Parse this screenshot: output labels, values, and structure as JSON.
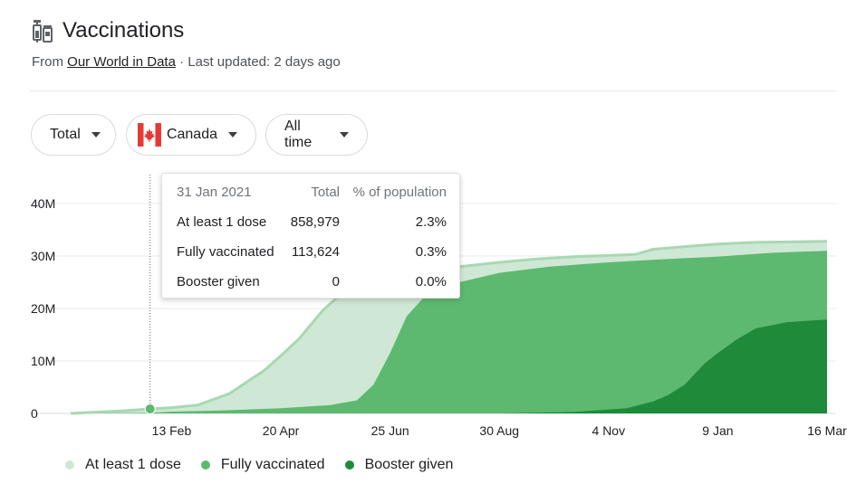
{
  "header": {
    "title": "Vaccinations",
    "icon": "syringe-vial-icon",
    "from_label": "From",
    "source_link": "Our World in Data",
    "separator": "·",
    "updated": "Last updated: 2 days ago"
  },
  "filters": {
    "metric": "Total",
    "country": "Canada",
    "country_flag": "canada-flag-icon",
    "range": "All time"
  },
  "tooltip": {
    "date": "31 Jan 2021",
    "col_total": "Total",
    "col_pct": "% of population",
    "rows": [
      {
        "label": "At least 1 dose",
        "total": "858,979",
        "pct": "2.3%"
      },
      {
        "label": "Fully vaccinated",
        "total": "113,624",
        "pct": "0.3%"
      },
      {
        "label": "Booster given",
        "total": "0",
        "pct": "0.0%"
      }
    ]
  },
  "colors": {
    "at_least_one": "#cfe8d5",
    "at_least_one_line": "#a8d8b2",
    "fully": "#5db96f",
    "booster": "#1e8a3a",
    "grid": "#ebebeb",
    "axis_text": "#202124"
  },
  "chart_data": {
    "type": "area",
    "title": "",
    "xlabel": "",
    "ylabel": "",
    "x_ticks": [
      "13 Feb",
      "20 Apr",
      "25 Jun",
      "30 Aug",
      "4 Nov",
      "9 Jan",
      "16 Mar"
    ],
    "y_ticks": [
      "0",
      "10M",
      "20M",
      "30M",
      "40M"
    ],
    "ylim": [
      0,
      40
    ],
    "y_unit": "M",
    "grid": true,
    "legend_position": "bottom",
    "x_domain": [
      "2020-12-14",
      "2022-03-16"
    ],
    "highlight": {
      "date": "2021-01-31",
      "series": "At least 1 dose",
      "value": 0.858979
    },
    "series": [
      {
        "name": "At least 1 dose",
        "points": [
          [
            "2020-12-14",
            0
          ],
          [
            "2021-01-15",
            0.5
          ],
          [
            "2021-01-31",
            0.86
          ],
          [
            "2021-02-13",
            1.1
          ],
          [
            "2021-03-01",
            1.6
          ],
          [
            "2021-03-20",
            3.8
          ],
          [
            "2021-04-10",
            8.2
          ],
          [
            "2021-04-20",
            11.0
          ],
          [
            "2021-05-01",
            14.2
          ],
          [
            "2021-05-15",
            19.5
          ],
          [
            "2021-05-29",
            23.6
          ],
          [
            "2021-06-10",
            25.8
          ],
          [
            "2021-06-25",
            26.8
          ],
          [
            "2021-07-15",
            27.4
          ],
          [
            "2021-08-10",
            28.1
          ],
          [
            "2021-08-30",
            28.8
          ],
          [
            "2021-09-20",
            29.4
          ],
          [
            "2021-10-15",
            29.9
          ],
          [
            "2021-11-04",
            30.1
          ],
          [
            "2021-11-20",
            30.3
          ],
          [
            "2021-12-01",
            31.3
          ],
          [
            "2021-12-20",
            31.8
          ],
          [
            "2022-01-09",
            32.3
          ],
          [
            "2022-02-01",
            32.6
          ],
          [
            "2022-03-16",
            32.8
          ]
        ]
      },
      {
        "name": "Fully vaccinated",
        "points": [
          [
            "2020-12-14",
            0
          ],
          [
            "2021-01-31",
            0.11
          ],
          [
            "2021-02-13",
            0.35
          ],
          [
            "2021-03-15",
            0.55
          ],
          [
            "2021-04-20",
            1.0
          ],
          [
            "2021-05-20",
            1.6
          ],
          [
            "2021-06-05",
            2.5
          ],
          [
            "2021-06-15",
            5.5
          ],
          [
            "2021-06-25",
            11.5
          ],
          [
            "2021-07-05",
            18.5
          ],
          [
            "2021-07-15",
            22.0
          ],
          [
            "2021-07-30",
            24.5
          ],
          [
            "2021-08-30",
            26.8
          ],
          [
            "2021-09-30",
            28.0
          ],
          [
            "2021-11-04",
            28.8
          ],
          [
            "2021-12-01",
            29.3
          ],
          [
            "2022-01-09",
            29.9
          ],
          [
            "2022-02-10",
            30.6
          ],
          [
            "2022-03-16",
            31.0
          ]
        ]
      },
      {
        "name": "Booster given",
        "points": [
          [
            "2020-12-14",
            0
          ],
          [
            "2021-09-01",
            0
          ],
          [
            "2021-10-15",
            0.3
          ],
          [
            "2021-11-15",
            1.0
          ],
          [
            "2021-12-01",
            2.3
          ],
          [
            "2021-12-10",
            3.5
          ],
          [
            "2021-12-20",
            5.5
          ],
          [
            "2022-01-01",
            9.5
          ],
          [
            "2022-01-09",
            11.5
          ],
          [
            "2022-01-20",
            14.0
          ],
          [
            "2022-02-01",
            16.2
          ],
          [
            "2022-02-20",
            17.4
          ],
          [
            "2022-03-16",
            17.9
          ]
        ]
      }
    ]
  }
}
